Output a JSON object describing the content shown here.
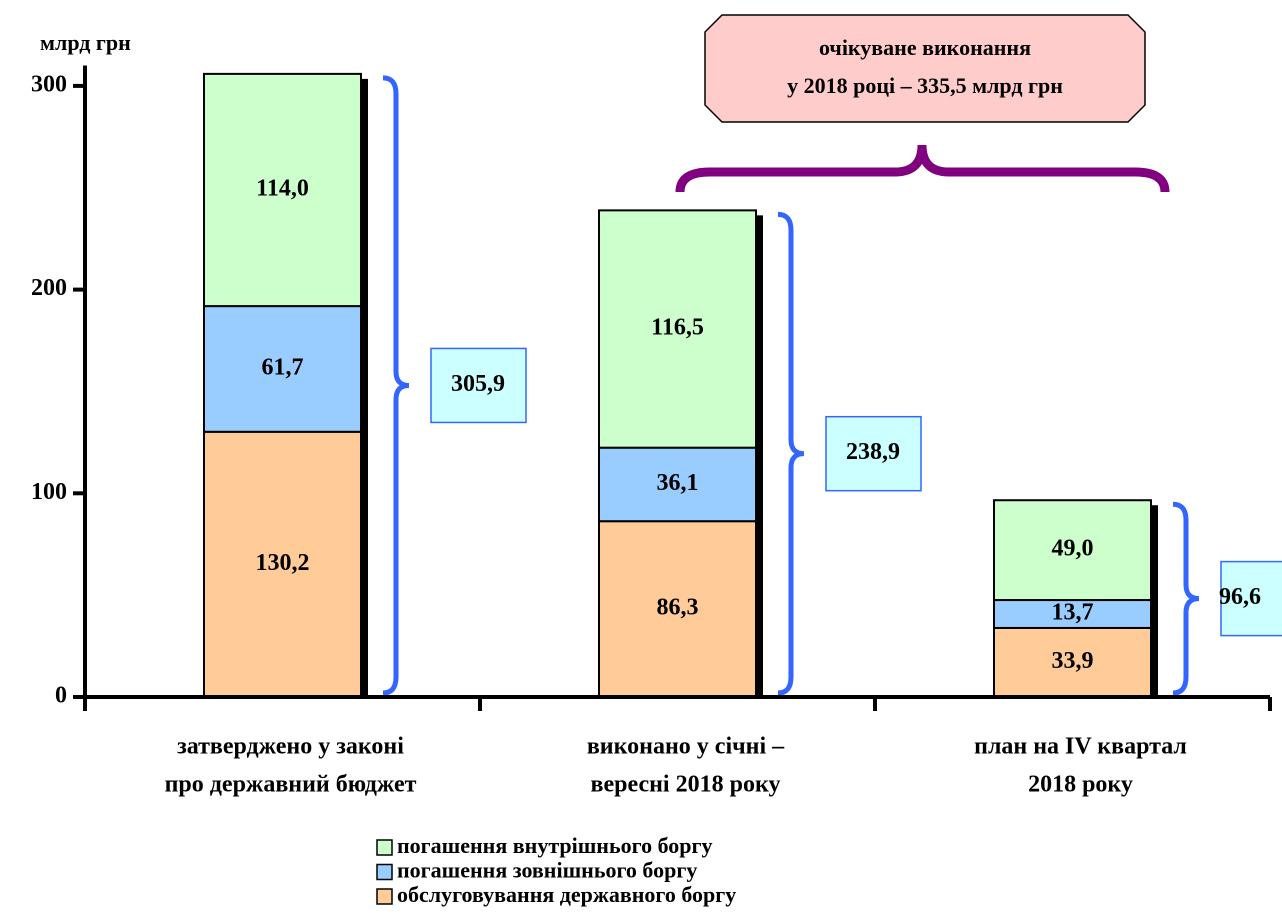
{
  "chart_data": {
    "type": "stacked_bar",
    "y_label": "млрд грн",
    "categories": [
      [
        "затверджено у законі",
        "про державний бюджет"
      ],
      [
        "виконано у січні –",
        "вересні 2018 року"
      ],
      [
        "план  на  IV квартал",
        "2018 року"
      ]
    ],
    "series": [
      {
        "name": "обслуговування державного боргу",
        "color": "#ffcc99",
        "values": [
          130.2,
          86.3,
          33.9
        ],
        "value_labels": [
          "130,2",
          "86,3",
          "33,9"
        ]
      },
      {
        "name": "погашення зовнішнього боргу",
        "color": "#99ccff",
        "values": [
          61.7,
          36.1,
          13.7
        ],
        "value_labels": [
          "61,7",
          "36,1",
          "13,7"
        ]
      },
      {
        "name": "погашення внутрішнього боргу",
        "color": "#ccffcc",
        "values": [
          114.0,
          116.5,
          49.0
        ],
        "value_labels": [
          "114,0",
          "116,5",
          "49,0"
        ]
      }
    ],
    "totals": [
      305.9,
      238.9,
      96.6
    ],
    "totals_labels": [
      "305,9",
      "238,9",
      "96,6"
    ],
    "annotation": [
      "очікуване виконання",
      "у 2018 році – 335,5 млрд грн"
    ],
    "ylim": [
      0,
      310
    ],
    "yticks": [
      0,
      100,
      200,
      300
    ]
  }
}
